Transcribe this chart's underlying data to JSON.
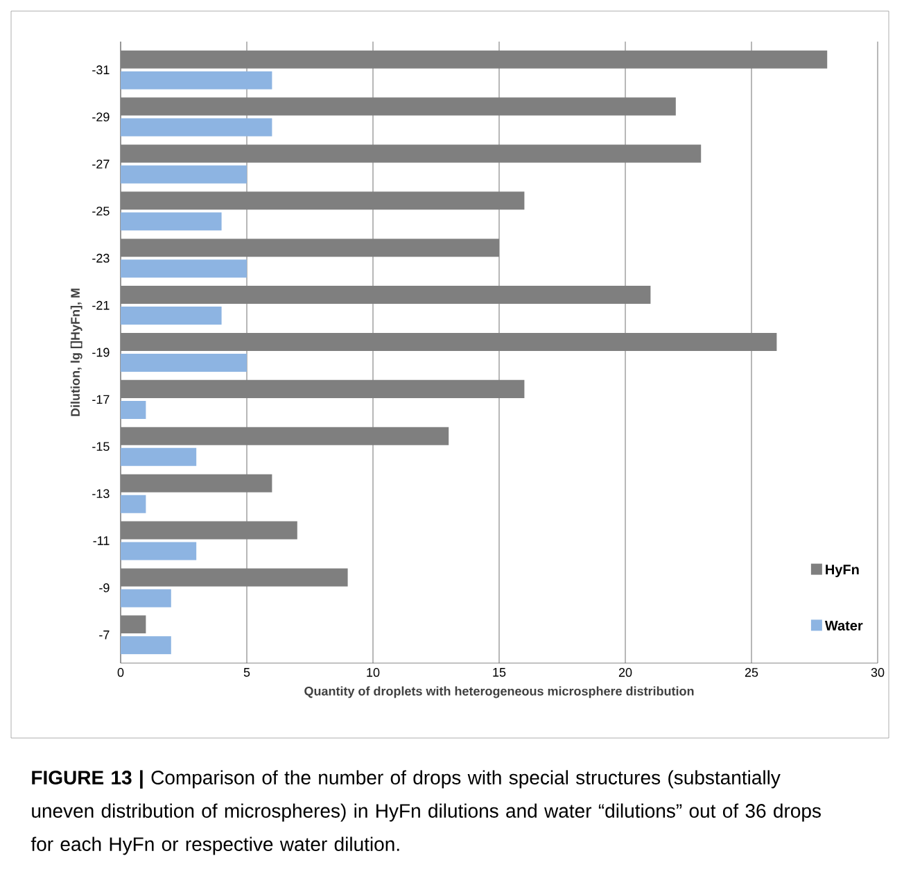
{
  "chart_data": {
    "type": "bar",
    "orientation": "horizontal",
    "xlabel": "Quantity of droplets with heterogeneous microsphere distribution",
    "ylabel": "Dilution, lg []HyFn], M",
    "categories": [
      "-31",
      "-29",
      "-27",
      "-25",
      "-23",
      "-21",
      "-19",
      "-17",
      "-15",
      "-13",
      "-11",
      "-9",
      "-7"
    ],
    "series": [
      {
        "name": "HyFn",
        "color": "#7f7f7f",
        "values": [
          28,
          22,
          23,
          16,
          15,
          21,
          26,
          16,
          13,
          6,
          7,
          9,
          1
        ]
      },
      {
        "name": "Water",
        "color": "#8db4e2",
        "values": [
          6,
          6,
          5,
          4,
          5,
          4,
          5,
          1,
          3,
          1,
          3,
          2,
          2
        ]
      }
    ],
    "xlim": [
      0,
      30
    ],
    "xticks": [
      0,
      5,
      10,
      15,
      20,
      25,
      30
    ],
    "grid": "x",
    "legend": "bottom right",
    "annotations": [
      "**FIGURE 13 |** Comparison of the number of drops with special structures (substantially uneven distribution of microspheres) in HyFn dilutions and water “dilutions” out of 36 drops for each HyFn or respective water dilution."
    ]
  }
}
